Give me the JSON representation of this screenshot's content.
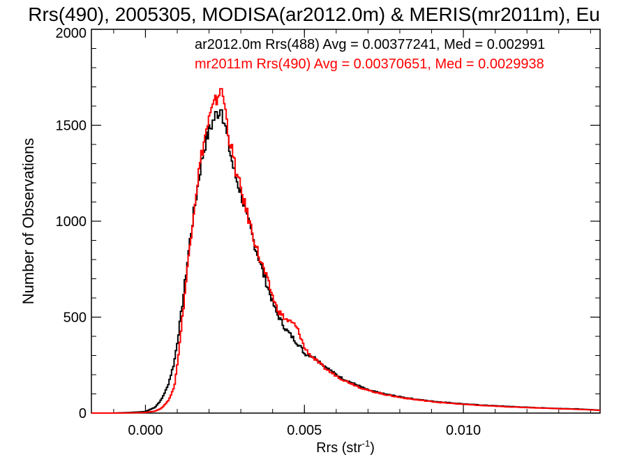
{
  "chart_data": {
    "type": "histogram",
    "title": "Rrs(490), 2005305, MODISA(ar2012.0m) & MERIS(mr2011m), Eu",
    "xlabel": "Rrs (str",
    "xlabel_sup": "-1",
    "xlabel_close": ")",
    "ylabel": "Number of Observations",
    "xlim": [
      -0.0017,
      0.0143
    ],
    "ylim": [
      0,
      2000
    ],
    "xticks": [
      {
        "value": 0.0,
        "label": "0.000"
      },
      {
        "value": 0.005,
        "label": "0.005"
      },
      {
        "value": 0.01,
        "label": "0.010"
      }
    ],
    "yticks": [
      {
        "value": 0,
        "label": "0"
      },
      {
        "value": 500,
        "label": "500"
      },
      {
        "value": 1000,
        "label": "1000"
      },
      {
        "value": 1500,
        "label": "1500"
      },
      {
        "value": 2000,
        "label": "2000"
      }
    ],
    "grid": false,
    "series": [
      {
        "name": "ar2012.0m Rrs(488)",
        "color": "#000000",
        "stats_label": "ar2012.0m Rrs(488) Avg = 0.00377241, Med = 0.002991",
        "peak_x": 0.0024,
        "peak_y": 1580,
        "x": [
          -0.0017,
          -0.001,
          -0.0005,
          0.0,
          0.0003,
          0.0005,
          0.0007,
          0.0009,
          0.001,
          0.0011,
          0.0012,
          0.0013,
          0.0014,
          0.0015,
          0.0016,
          0.0017,
          0.0018,
          0.0019,
          0.002,
          0.0021,
          0.0022,
          0.0023,
          0.0024,
          0.0025,
          0.0026,
          0.0027,
          0.0028,
          0.0029,
          0.003,
          0.0031,
          0.0032,
          0.0033,
          0.0034,
          0.0035,
          0.0036,
          0.0037,
          0.0038,
          0.0039,
          0.004,
          0.0041,
          0.0042,
          0.0043,
          0.0044,
          0.0045,
          0.0046,
          0.0047,
          0.0048,
          0.0049,
          0.005,
          0.0052,
          0.0054,
          0.0056,
          0.0058,
          0.006,
          0.0062,
          0.0064,
          0.0066,
          0.0068,
          0.007,
          0.0075,
          0.008,
          0.0085,
          0.009,
          0.0095,
          0.01,
          0.0105,
          0.011,
          0.0115,
          0.012,
          0.0125,
          0.013,
          0.0135,
          0.014,
          0.0143
        ],
        "y": [
          0,
          0,
          3,
          8,
          30,
          70,
          140,
          260,
          370,
          490,
          620,
          760,
          900,
          1020,
          1130,
          1250,
          1340,
          1420,
          1470,
          1510,
          1550,
          1570,
          1580,
          1500,
          1410,
          1330,
          1250,
          1200,
          1150,
          1080,
          1010,
          960,
          900,
          840,
          790,
          730,
          680,
          630,
          580,
          530,
          500,
          470,
          440,
          420,
          400,
          380,
          360,
          340,
          310,
          300,
          280,
          250,
          225,
          200,
          180,
          165,
          150,
          135,
          120,
          100,
          85,
          72,
          62,
          55,
          48,
          42,
          38,
          34,
          30,
          27,
          24,
          22,
          18,
          15
        ]
      },
      {
        "name": "mr2011m Rrs(490)",
        "color": "#ff0000",
        "stats_label": "mr2011m Rrs(490) Avg = 0.00370651, Med = 0.0029938",
        "peak_x": 0.0024,
        "peak_y": 1690,
        "x": [
          -0.0017,
          -0.001,
          -0.0005,
          0.0,
          0.0003,
          0.0005,
          0.0007,
          0.0009,
          0.001,
          0.0011,
          0.0012,
          0.0013,
          0.0014,
          0.0015,
          0.0016,
          0.0017,
          0.0018,
          0.0019,
          0.002,
          0.0021,
          0.0022,
          0.0023,
          0.0024,
          0.0025,
          0.0026,
          0.0027,
          0.0028,
          0.0029,
          0.003,
          0.0031,
          0.0032,
          0.0033,
          0.0034,
          0.0035,
          0.0036,
          0.0037,
          0.0038,
          0.0039,
          0.004,
          0.0041,
          0.0042,
          0.0043,
          0.0044,
          0.0045,
          0.0046,
          0.0047,
          0.0048,
          0.0049,
          0.005,
          0.0052,
          0.0054,
          0.0056,
          0.0058,
          0.006,
          0.0062,
          0.0064,
          0.0066,
          0.0068,
          0.007,
          0.0075,
          0.008,
          0.0085,
          0.009,
          0.0095,
          0.01,
          0.0105,
          0.011,
          0.0115,
          0.012,
          0.0125,
          0.013,
          0.0135,
          0.014,
          0.0143
        ],
        "y": [
          0,
          0,
          1,
          3,
          10,
          25,
          60,
          130,
          250,
          400,
          560,
          720,
          880,
          1030,
          1160,
          1280,
          1380,
          1460,
          1530,
          1580,
          1620,
          1660,
          1690,
          1600,
          1470,
          1380,
          1300,
          1220,
          1170,
          1100,
          1040,
          980,
          920,
          860,
          800,
          760,
          710,
          660,
          610,
          560,
          530,
          510,
          490,
          480,
          470,
          460,
          430,
          390,
          340,
          300,
          270,
          240,
          215,
          195,
          175,
          160,
          145,
          130,
          118,
          98,
          82,
          70,
          60,
          52,
          46,
          40,
          36,
          32,
          29,
          26,
          23,
          20,
          17,
          14
        ]
      }
    ]
  }
}
